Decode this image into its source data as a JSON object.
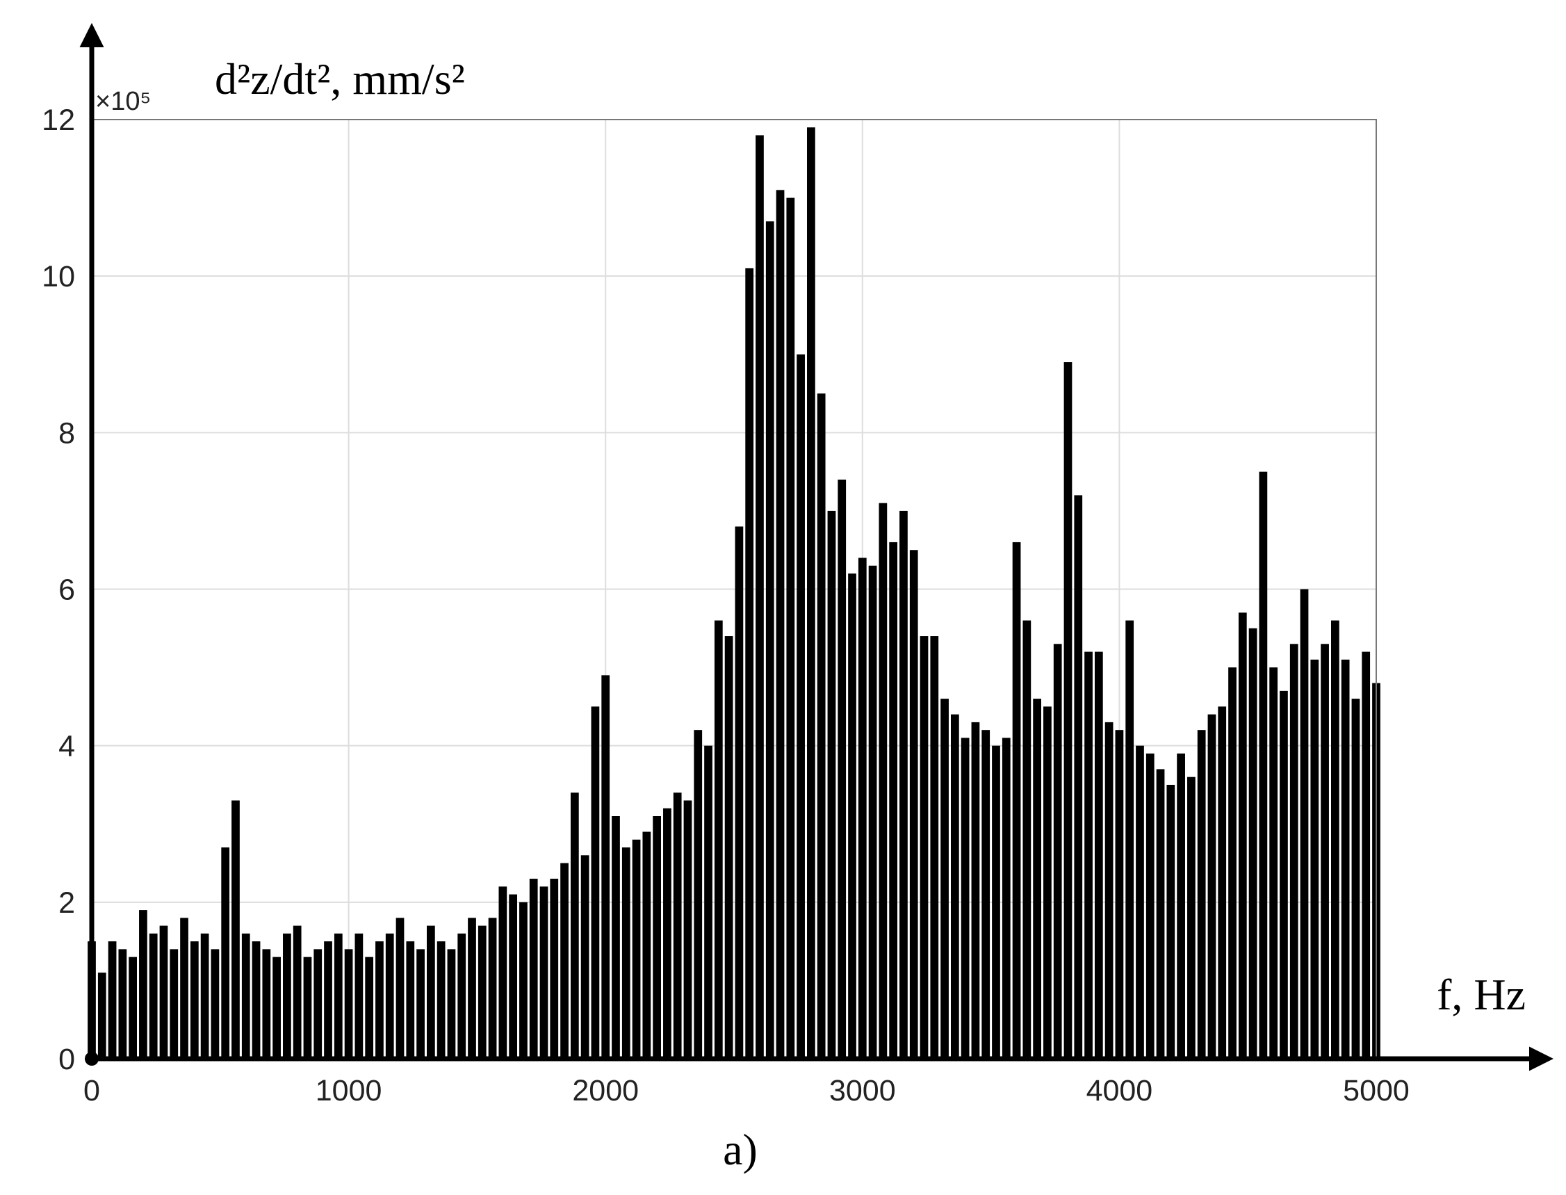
{
  "chart_data": {
    "type": "stem",
    "y_label": "d²z/dt², mm/s²",
    "y_multiplier": "×10⁵",
    "x_label": "f, Hz",
    "caption": "a)",
    "x": [
      0,
      40,
      80,
      120,
      160,
      200,
      240,
      280,
      320,
      360,
      400,
      440,
      480,
      520,
      560,
      600,
      640,
      680,
      720,
      760,
      800,
      840,
      880,
      920,
      960,
      1000,
      1040,
      1080,
      1120,
      1160,
      1200,
      1240,
      1280,
      1320,
      1360,
      1400,
      1440,
      1480,
      1520,
      1560,
      1600,
      1640,
      1680,
      1720,
      1760,
      1800,
      1840,
      1880,
      1920,
      1960,
      2000,
      2040,
      2080,
      2120,
      2160,
      2200,
      2240,
      2280,
      2320,
      2360,
      2400,
      2440,
      2480,
      2520,
      2560,
      2600,
      2640,
      2680,
      2720,
      2760,
      2800,
      2840,
      2880,
      2920,
      2960,
      3000,
      3040,
      3080,
      3120,
      3160,
      3200,
      3240,
      3280,
      3320,
      3360,
      3400,
      3440,
      3480,
      3520,
      3560,
      3600,
      3640,
      3680,
      3720,
      3760,
      3800,
      3840,
      3880,
      3920,
      3960,
      4000,
      4040,
      4080,
      4120,
      4160,
      4200,
      4240,
      4280,
      4320,
      4360,
      4400,
      4440,
      4480,
      4520,
      4560,
      4600,
      4640,
      4680,
      4720,
      4760,
      4800,
      4840,
      4880,
      4920,
      4960,
      5000
    ],
    "values": [
      1.5,
      1.1,
      1.5,
      1.4,
      1.3,
      1.9,
      1.6,
      1.7,
      1.4,
      1.8,
      1.5,
      1.6,
      1.4,
      2.7,
      3.3,
      1.6,
      1.5,
      1.4,
      1.3,
      1.6,
      1.7,
      1.3,
      1.4,
      1.5,
      1.6,
      1.4,
      1.6,
      1.3,
      1.5,
      1.6,
      1.8,
      1.5,
      1.4,
      1.7,
      1.5,
      1.4,
      1.6,
      1.8,
      1.7,
      1.8,
      2.2,
      2.1,
      2.0,
      2.3,
      2.2,
      2.3,
      2.5,
      3.4,
      2.6,
      4.5,
      4.9,
      3.1,
      2.7,
      2.8,
      2.9,
      3.1,
      3.2,
      3.4,
      3.3,
      4.2,
      4.0,
      5.6,
      5.4,
      6.8,
      10.1,
      11.8,
      10.7,
      11.1,
      11.0,
      9.0,
      11.9,
      8.5,
      7.0,
      7.4,
      6.2,
      6.4,
      6.3,
      7.1,
      6.6,
      7.0,
      6.5,
      5.4,
      5.4,
      4.6,
      4.4,
      4.1,
      4.3,
      4.2,
      4.0,
      4.1,
      6.6,
      5.6,
      4.6,
      4.5,
      5.3,
      8.9,
      7.2,
      5.2,
      5.2,
      4.3,
      4.2,
      5.6,
      4.0,
      3.9,
      3.7,
      3.5,
      3.9,
      3.6,
      4.2,
      4.4,
      4.5,
      5.0,
      5.7,
      5.5,
      7.5,
      5.0,
      4.7,
      5.3,
      6.0,
      5.1,
      5.3,
      5.6,
      5.1,
      4.6,
      5.2,
      4.8
    ],
    "color": "#000000",
    "xlim": [
      0,
      5000
    ],
    "xticks": [
      0,
      1000,
      2000,
      3000,
      4000,
      5000
    ],
    "ylim": [
      0,
      12
    ],
    "yticks": [
      0,
      2,
      4,
      6,
      8,
      10,
      12
    ],
    "grid": true
  }
}
